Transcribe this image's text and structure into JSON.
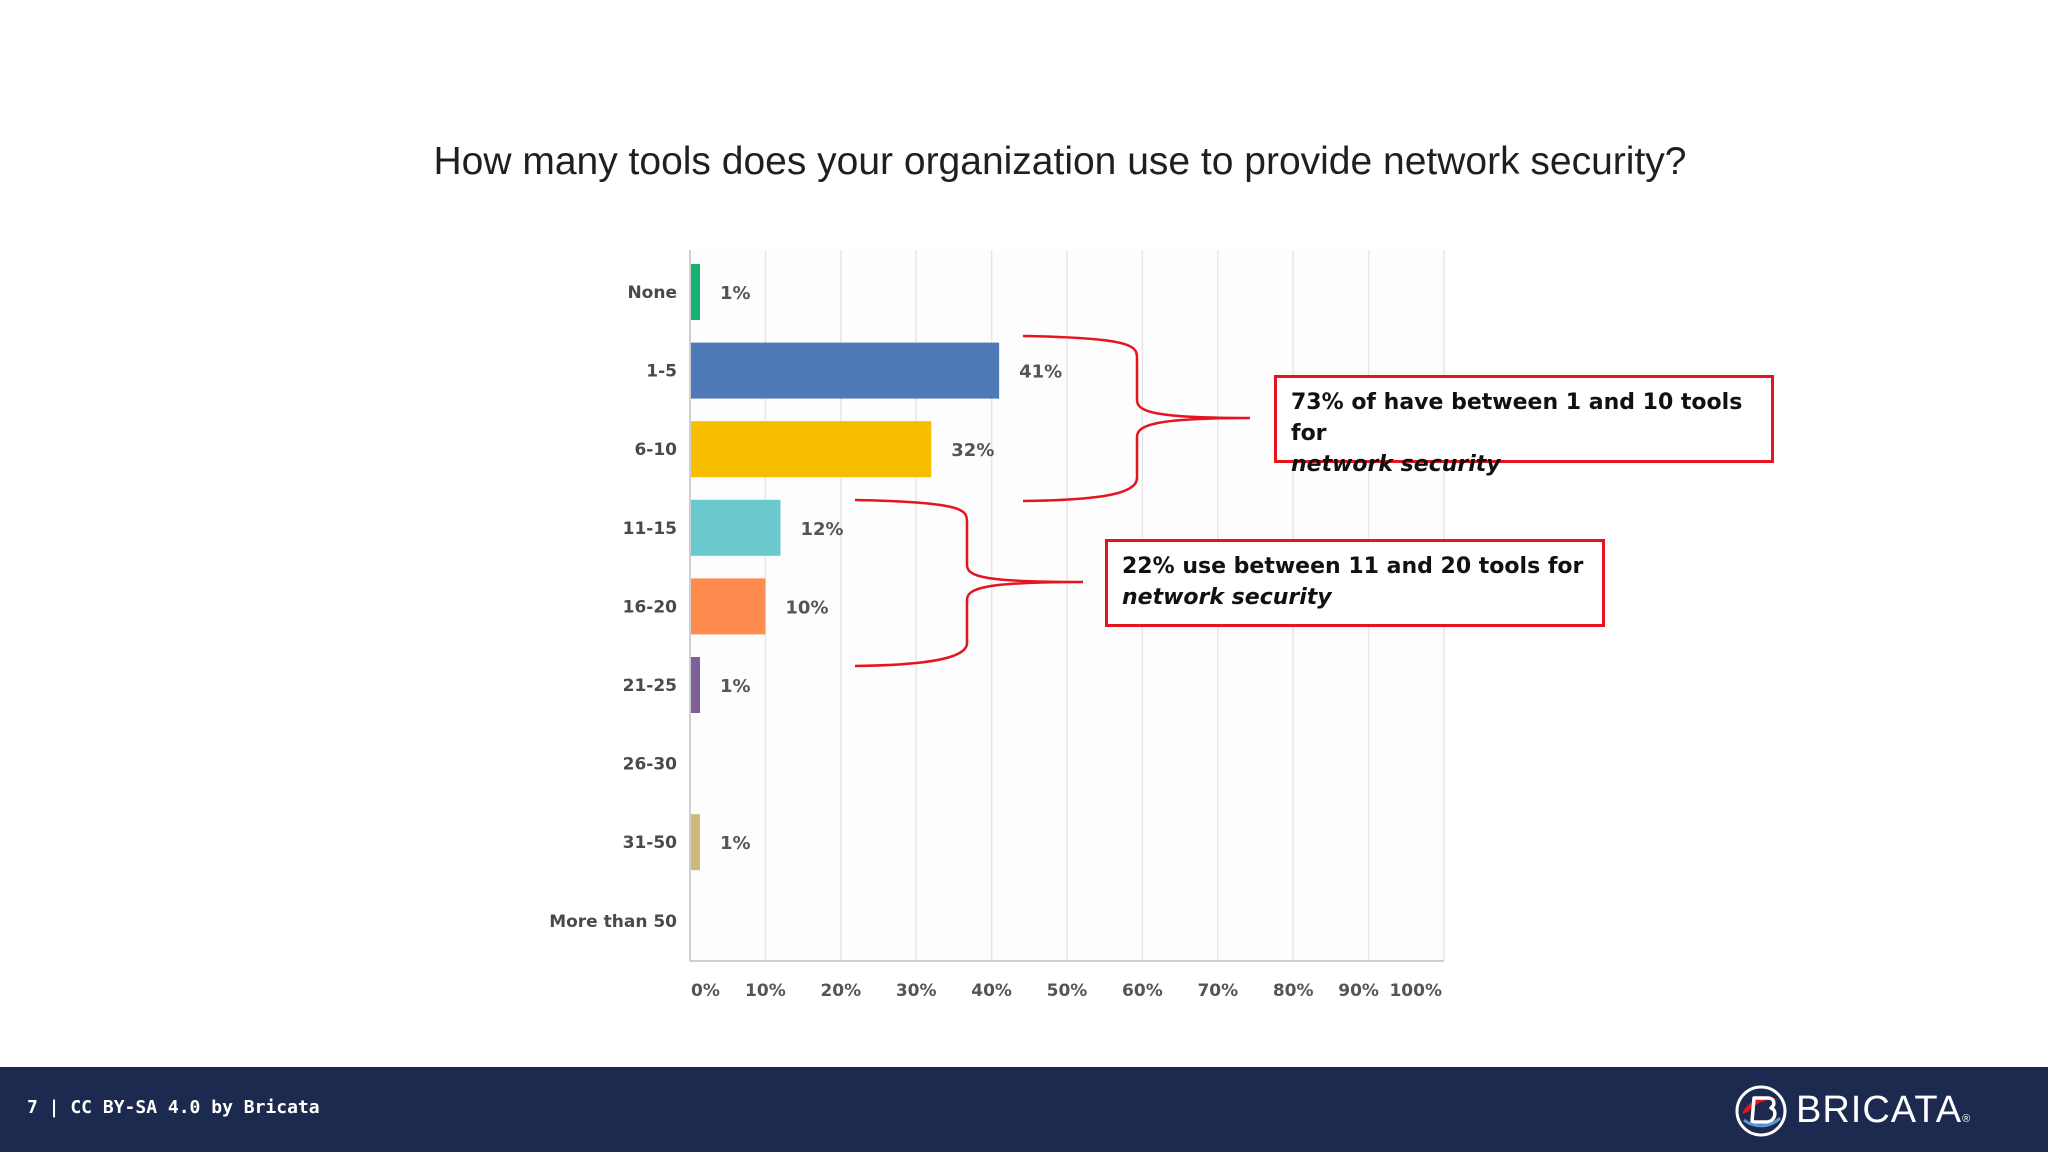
{
  "slide": {
    "question": "How many tools does your organization use to provide network security?"
  },
  "chart_data": {
    "type": "bar",
    "orientation": "horizontal",
    "title": "How many tools does your organization use to provide network security?",
    "categories": [
      "None",
      "1-5",
      "6-10",
      "11-15",
      "16-20",
      "21-25",
      "26-30",
      "31-50",
      "More than 50"
    ],
    "values": [
      1,
      41,
      32,
      12,
      10,
      1,
      0,
      1,
      0
    ],
    "value_labels": [
      "1%",
      "41%",
      "32%",
      "12%",
      "10%",
      "1%",
      "",
      "1%",
      ""
    ],
    "colors": [
      "#14b371",
      "#5079b8",
      "#f7be00",
      "#6bc8cd",
      "#fe8c4f",
      "#7e5f99",
      "#ffffff",
      "#cfb97a",
      "#ffffff"
    ],
    "x_ticks": [
      "0%",
      "10%",
      "20%",
      "30%",
      "40%",
      "50%",
      "60%",
      "70%",
      "80%",
      "90%",
      "100%"
    ],
    "xlim": [
      0,
      100
    ],
    "grid": true,
    "annotations": [
      {
        "text_main": "73% of have between 1 and 10 tools for",
        "text_em": "network security",
        "brackets_categories": [
          "1-5",
          "6-10"
        ]
      },
      {
        "text_main": "22% use between 11 and 20 tools for",
        "text_em": "network security",
        "brackets_categories": [
          "11-15",
          "16-20"
        ]
      }
    ]
  },
  "footer": {
    "text": "7 | CC BY-SA 4.0 by Bricata",
    "logo_text": "BRICATA",
    "logo_reg": "®"
  },
  "colors": {
    "footer_bg": "#1b2a4e",
    "callout_border": "#e5141f",
    "grid": "#e6e6e6"
  }
}
